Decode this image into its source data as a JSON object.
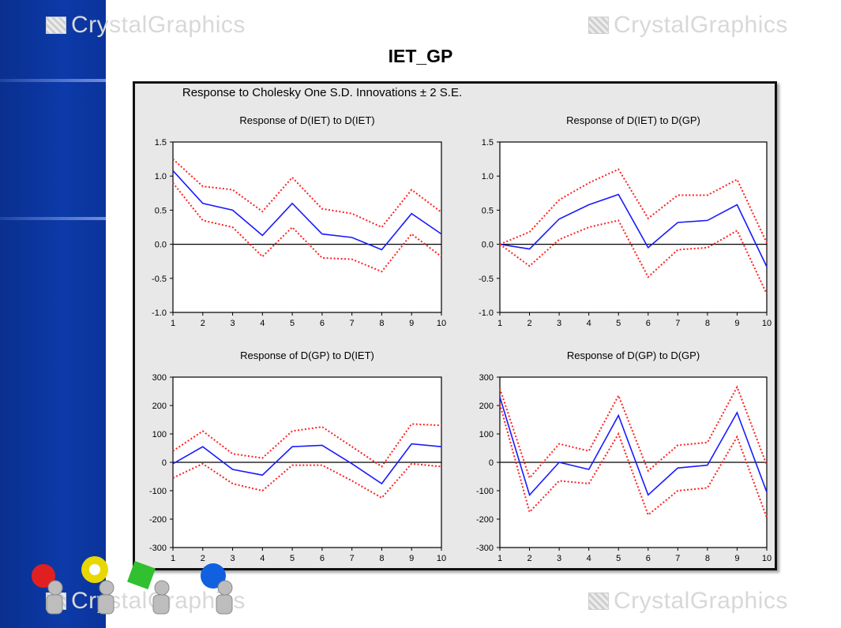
{
  "slide": {
    "title": "IET_GP",
    "watermark_text": "CrystalGraphics",
    "colors": {
      "sidebar": "#0c3aa8",
      "panel_bg": "#e8e8e8",
      "response_line": "#1a1aff",
      "band_line": "#ff2020"
    }
  },
  "figure": {
    "title": "Response to Cholesky One S.D. Innovations ± 2 S.E."
  },
  "chart_data": [
    {
      "type": "line",
      "title": "Response of D(IET) to D(IET)",
      "x": [
        1,
        2,
        3,
        4,
        5,
        6,
        7,
        8,
        9,
        10
      ],
      "ylim": [
        -1.0,
        1.5
      ],
      "yticks": [
        1.5,
        1.0,
        0.5,
        0.0,
        -0.5,
        -1.0
      ],
      "ytick_labels": [
        "1.5",
        "1.0",
        "0.5",
        "0.0",
        "-0.5",
        "-1.0"
      ],
      "series": [
        {
          "values": [
            1.08,
            0.6,
            0.5,
            0.13,
            0.6,
            0.15,
            0.1,
            -0.08,
            0.45,
            0.15
          ]
        },
        {
          "values": [
            1.25,
            0.85,
            0.8,
            0.48,
            0.98,
            0.52,
            0.45,
            0.25,
            0.8,
            0.47
          ]
        },
        {
          "values": [
            0.9,
            0.35,
            0.25,
            -0.18,
            0.25,
            -0.2,
            -0.22,
            -0.4,
            0.15,
            -0.18
          ]
        }
      ]
    },
    {
      "type": "line",
      "title": "Response of D(IET) to D(GP)",
      "x": [
        1,
        2,
        3,
        4,
        5,
        6,
        7,
        8,
        9,
        10
      ],
      "ylim": [
        -1.0,
        1.5
      ],
      "yticks": [
        1.5,
        1.0,
        0.5,
        0.0,
        -0.5,
        -1.0
      ],
      "ytick_labels": [
        "1.5",
        "1.0",
        "0.5",
        "0.0",
        "-0.5",
        "-1.0"
      ],
      "series": [
        {
          "values": [
            0.0,
            -0.07,
            0.37,
            0.58,
            0.73,
            -0.05,
            0.32,
            0.35,
            0.58,
            -0.33
          ]
        },
        {
          "values": [
            0.0,
            0.18,
            0.65,
            0.9,
            1.1,
            0.38,
            0.72,
            0.72,
            0.95,
            0.02
          ]
        },
        {
          "values": [
            0.0,
            -0.32,
            0.07,
            0.25,
            0.35,
            -0.48,
            -0.08,
            -0.05,
            0.2,
            -0.73
          ]
        }
      ]
    },
    {
      "type": "line",
      "title": "Response of D(GP) to D(IET)",
      "x": [
        1,
        2,
        3,
        4,
        5,
        6,
        7,
        8,
        9,
        10
      ],
      "ylim": [
        -300,
        300
      ],
      "yticks": [
        300,
        200,
        100,
        0,
        -100,
        -200,
        -300
      ],
      "ytick_labels": [
        "300",
        "200",
        "100",
        "0",
        "-100",
        "-200",
        "-300"
      ],
      "series": [
        {
          "values": [
            -5,
            55,
            -25,
            -45,
            55,
            60,
            -5,
            -75,
            65,
            55
          ]
        },
        {
          "values": [
            40,
            110,
            30,
            15,
            110,
            125,
            55,
            -15,
            135,
            130
          ]
        },
        {
          "values": [
            -55,
            -5,
            -75,
            -100,
            -10,
            -10,
            -65,
            -125,
            -5,
            -15
          ]
        }
      ]
    },
    {
      "type": "line",
      "title": "Response of D(GP) to D(GP)",
      "x": [
        1,
        2,
        3,
        4,
        5,
        6,
        7,
        8,
        9,
        10
      ],
      "ylim": [
        -300,
        300
      ],
      "yticks": [
        300,
        200,
        100,
        0,
        -100,
        -200,
        -300
      ],
      "ytick_labels": [
        "300",
        "200",
        "100",
        "0",
        "-100",
        "-200",
        "-300"
      ],
      "series": [
        {
          "values": [
            230,
            -115,
            0,
            -25,
            165,
            -115,
            -20,
            -10,
            175,
            -105
          ]
        },
        {
          "values": [
            260,
            -55,
            65,
            40,
            235,
            -30,
            60,
            70,
            265,
            -10
          ]
        },
        {
          "values": [
            205,
            -175,
            -65,
            -75,
            100,
            -185,
            -100,
            -90,
            90,
            -195
          ]
        }
      ]
    }
  ]
}
